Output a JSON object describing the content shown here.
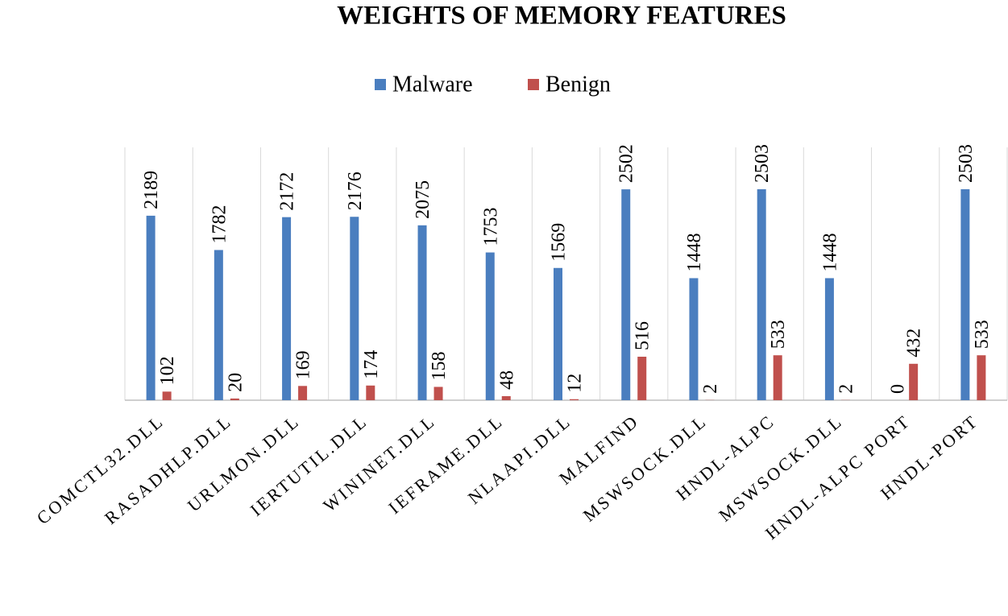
{
  "chart_data": {
    "type": "bar",
    "title": "WEIGHTS OF MEMORY FEATURES",
    "categories": [
      "COMCTL32.DLL",
      "RASADHLP.DLL",
      "URLMON.DLL",
      "IERTUTIL.DLL",
      "WININET.DLL",
      "IEFRAME.DLL",
      "NLAAPI.DLL",
      "MALFIND",
      "MSWSOCK.DLL",
      "HNDL-ALPC",
      "MSWSOCK.DLL",
      "HNDL-ALPC PORT",
      "HNDL-PORT"
    ],
    "series": [
      {
        "name": "Malware",
        "color": "#4a7ebf",
        "values": [
          2189,
          1782,
          2172,
          2176,
          2075,
          1753,
          1569,
          2502,
          1448,
          2503,
          1448,
          0,
          2503
        ]
      },
      {
        "name": "Benign",
        "color": "#c0504d",
        "values": [
          102,
          20,
          169,
          174,
          158,
          48,
          12,
          516,
          2,
          533,
          2,
          432,
          533
        ]
      }
    ],
    "ylim": [
      0,
      3000
    ],
    "legend": "top"
  }
}
